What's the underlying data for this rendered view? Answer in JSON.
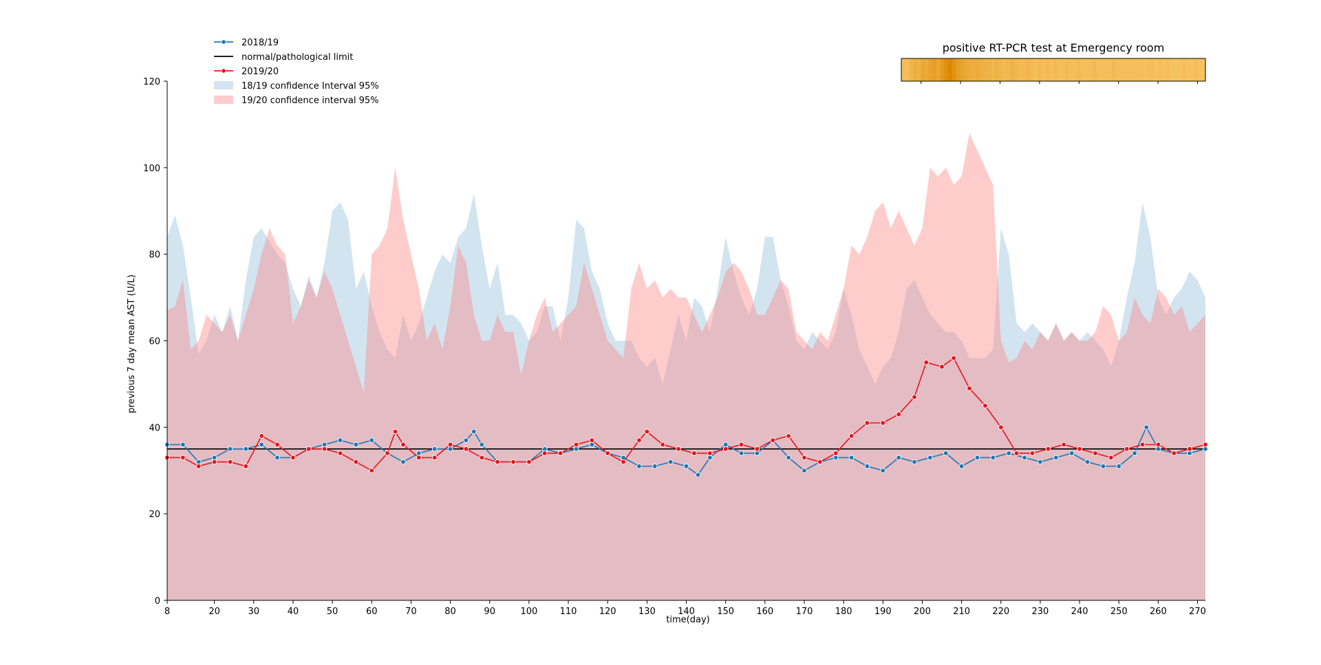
{
  "chart_data": {
    "type": "line",
    "xlabel": "time(day)",
    "ylabel": "previous 7 day mean AST (U/L)",
    "xlim": [
      8,
      272
    ],
    "ylim": [
      0,
      120
    ],
    "x_ticks": [
      8,
      20,
      30,
      40,
      50,
      60,
      70,
      80,
      90,
      100,
      110,
      120,
      130,
      140,
      150,
      160,
      170,
      180,
      190,
      200,
      210,
      220,
      230,
      240,
      250,
      260,
      270
    ],
    "y_ticks": [
      0,
      20,
      40,
      60,
      80,
      100,
      120
    ],
    "reference_line": {
      "name": "normal/pathological limit",
      "y": 35,
      "color": "#000000"
    },
    "legend": {
      "placement": "top-left",
      "entries": [
        "2018/19",
        "normal/pathological limit",
        "2019/20",
        "18/19 confidence Interval 95%",
        "19/20 confidence interval 95%"
      ]
    },
    "series": [
      {
        "name": "2018/19",
        "color": "#1f77b4",
        "x": [
          8,
          12,
          16,
          20,
          24,
          28,
          32,
          36,
          40,
          44,
          48,
          52,
          56,
          60,
          64,
          68,
          72,
          76,
          80,
          84,
          86,
          88,
          92,
          96,
          100,
          104,
          108,
          112,
          116,
          120,
          124,
          128,
          132,
          136,
          140,
          143,
          146,
          150,
          154,
          158,
          162,
          166,
          170,
          174,
          178,
          182,
          186,
          190,
          194,
          198,
          202,
          206,
          210,
          214,
          218,
          222,
          226,
          230,
          234,
          238,
          242,
          246,
          250,
          254,
          257,
          260,
          264,
          268,
          272
        ],
        "values": [
          36,
          36,
          32,
          33,
          35,
          35,
          36,
          33,
          33,
          35,
          36,
          37,
          36,
          37,
          34,
          32,
          34,
          35,
          35,
          37,
          39,
          36,
          32,
          32,
          32,
          35,
          34,
          35,
          36,
          34,
          33,
          31,
          31,
          32,
          31,
          29,
          33,
          36,
          34,
          34,
          37,
          33,
          30,
          32,
          33,
          33,
          31,
          30,
          33,
          32,
          33,
          34,
          31,
          33,
          33,
          34,
          33,
          32,
          33,
          34,
          32,
          31,
          31,
          34,
          40,
          35,
          34,
          34,
          35
        ]
      },
      {
        "name": "2019/20",
        "color": "#e8141c",
        "x": [
          8,
          12,
          16,
          20,
          24,
          28,
          32,
          36,
          40,
          44,
          48,
          52,
          56,
          60,
          64,
          66,
          68,
          72,
          76,
          80,
          84,
          88,
          92,
          96,
          100,
          104,
          108,
          112,
          116,
          120,
          124,
          128,
          130,
          134,
          138,
          142,
          146,
          150,
          154,
          158,
          162,
          166,
          170,
          174,
          178,
          182,
          186,
          190,
          194,
          198,
          201,
          205,
          208,
          212,
          216,
          220,
          224,
          228,
          232,
          236,
          240,
          244,
          248,
          252,
          256,
          260,
          264,
          268,
          272
        ],
        "values": [
          33,
          33,
          31,
          32,
          32,
          31,
          38,
          36,
          33,
          35,
          35,
          34,
          32,
          30,
          34,
          39,
          36,
          33,
          33,
          36,
          35,
          33,
          32,
          32,
          32,
          34,
          34,
          36,
          37,
          34,
          32,
          37,
          39,
          36,
          35,
          34,
          34,
          35,
          36,
          35,
          37,
          38,
          33,
          32,
          34,
          38,
          41,
          41,
          43,
          47,
          55,
          54,
          56,
          49,
          45,
          40,
          34,
          34,
          35,
          36,
          35,
          34,
          33,
          35,
          36,
          36,
          34,
          35,
          36
        ]
      }
    ],
    "confidence_bands": [
      {
        "name": "18/19 confidence Interval 95%",
        "color": "#1f77b4",
        "opacity": 0.2,
        "x": [
          8,
          10,
          12,
          14,
          16,
          18,
          20,
          22,
          24,
          26,
          28,
          30,
          32,
          34,
          36,
          38,
          40,
          42,
          44,
          46,
          48,
          50,
          52,
          54,
          56,
          58,
          60,
          62,
          64,
          66,
          68,
          70,
          72,
          74,
          76,
          78,
          80,
          82,
          84,
          86,
          88,
          90,
          92,
          94,
          96,
          98,
          100,
          102,
          104,
          106,
          108,
          110,
          112,
          114,
          116,
          118,
          120,
          122,
          124,
          126,
          128,
          130,
          132,
          134,
          136,
          138,
          140,
          142,
          144,
          146,
          148,
          150,
          152,
          154,
          156,
          158,
          160,
          162,
          164,
          166,
          168,
          170,
          172,
          174,
          176,
          178,
          180,
          182,
          184,
          186,
          188,
          190,
          192,
          194,
          196,
          198,
          200,
          202,
          204,
          206,
          208,
          210,
          212,
          214,
          216,
          218,
          220,
          222,
          224,
          226,
          228,
          230,
          232,
          234,
          236,
          238,
          240,
          242,
          244,
          246,
          248,
          250,
          252,
          254,
          256,
          258,
          260,
          262,
          264,
          266,
          268,
          270,
          272
        ],
        "upper": [
          84,
          89,
          82,
          70,
          57,
          60,
          66,
          62,
          68,
          60,
          74,
          84,
          86,
          83,
          80,
          78,
          72,
          68,
          75,
          70,
          78,
          90,
          92,
          88,
          72,
          76,
          68,
          62,
          58,
          56,
          66,
          60,
          64,
          70,
          76,
          80,
          78,
          84,
          86,
          94,
          82,
          72,
          78,
          66,
          66,
          64,
          60,
          62,
          68,
          68,
          60,
          70,
          88,
          86,
          76,
          72,
          64,
          60,
          60,
          60,
          56,
          54,
          56,
          50,
          58,
          66,
          60,
          70,
          68,
          62,
          72,
          84,
          76,
          70,
          66,
          72,
          84,
          84,
          74,
          68,
          60,
          58,
          62,
          60,
          58,
          62,
          72,
          66,
          58,
          54,
          50,
          54,
          56,
          62,
          72,
          74,
          70,
          66,
          64,
          62,
          62,
          60,
          56,
          56,
          56,
          58,
          86,
          80,
          64,
          62,
          64,
          62,
          60,
          64,
          60,
          62,
          60,
          62,
          60,
          58,
          54,
          60,
          70,
          78,
          92,
          84,
          70,
          66,
          70,
          72,
          76,
          74,
          70
        ],
        "lower": [
          0,
          0,
          0,
          0,
          0,
          0,
          0,
          0,
          0,
          0,
          0,
          0,
          0,
          0,
          0,
          0,
          0,
          0,
          0,
          0,
          0,
          0,
          0,
          0,
          0,
          0,
          0,
          0,
          0,
          0,
          0,
          0,
          0,
          0,
          0,
          0,
          0,
          0,
          0,
          0,
          0,
          0,
          0,
          0,
          0,
          0,
          0,
          0,
          0,
          0,
          0,
          0,
          0,
          0,
          0,
          0,
          0,
          0,
          0,
          0,
          0,
          0,
          0,
          0,
          0,
          0,
          0,
          0,
          0,
          0,
          0,
          0,
          0,
          0,
          0,
          0,
          0,
          0,
          0,
          0,
          0,
          0,
          0,
          0,
          0,
          0,
          0,
          0,
          0,
          0,
          0,
          0,
          0,
          0,
          0,
          0,
          0,
          0,
          0,
          0,
          0,
          0,
          0,
          0,
          0,
          0,
          0,
          0,
          0,
          0,
          0,
          0,
          0,
          0,
          0,
          0,
          0,
          0,
          0,
          0,
          0,
          0,
          0,
          0,
          0,
          0,
          0,
          0,
          0,
          0,
          0,
          0,
          0
        ]
      },
      {
        "name": "19/20 confidence interval 95%",
        "color": "#ff7f7f",
        "opacity": 0.4,
        "x": [
          8,
          10,
          12,
          14,
          16,
          18,
          20,
          22,
          24,
          26,
          28,
          30,
          32,
          34,
          36,
          38,
          40,
          42,
          44,
          46,
          48,
          50,
          52,
          54,
          56,
          58,
          60,
          62,
          64,
          66,
          68,
          70,
          72,
          74,
          76,
          78,
          80,
          82,
          84,
          86,
          88,
          90,
          92,
          94,
          96,
          98,
          100,
          102,
          104,
          106,
          108,
          110,
          112,
          114,
          116,
          118,
          120,
          122,
          124,
          126,
          128,
          130,
          132,
          134,
          136,
          138,
          140,
          142,
          144,
          146,
          148,
          150,
          152,
          154,
          156,
          158,
          160,
          162,
          164,
          166,
          168,
          170,
          172,
          174,
          176,
          178,
          180,
          182,
          184,
          186,
          188,
          190,
          192,
          194,
          196,
          198,
          200,
          202,
          204,
          206,
          208,
          210,
          212,
          214,
          216,
          218,
          220,
          222,
          224,
          226,
          228,
          230,
          232,
          234,
          236,
          238,
          240,
          242,
          244,
          246,
          248,
          250,
          252,
          254,
          256,
          258,
          260,
          262,
          264,
          266,
          268,
          270,
          272
        ],
        "upper": [
          67,
          68,
          74,
          58,
          60,
          66,
          64,
          62,
          66,
          60,
          66,
          72,
          80,
          86,
          82,
          80,
          64,
          68,
          74,
          70,
          76,
          72,
          66,
          60,
          54,
          48,
          80,
          82,
          86,
          100,
          88,
          80,
          72,
          60,
          64,
          58,
          68,
          82,
          78,
          66,
          60,
          60,
          66,
          62,
          62,
          52,
          60,
          66,
          70,
          62,
          64,
          66,
          68,
          78,
          72,
          66,
          60,
          58,
          56,
          72,
          78,
          72,
          74,
          70,
          72,
          70,
          70,
          66,
          62,
          66,
          70,
          76,
          78,
          76,
          72,
          66,
          66,
          70,
          74,
          72,
          62,
          60,
          58,
          62,
          60,
          66,
          72,
          82,
          80,
          84,
          90,
          92,
          86,
          90,
          86,
          82,
          86,
          100,
          98,
          100,
          96,
          98,
          108,
          104,
          100,
          96,
          60,
          55,
          56,
          60,
          58,
          62,
          60,
          64,
          60,
          62,
          60,
          60,
          62,
          68,
          66,
          60,
          62,
          70,
          66,
          64,
          72,
          70,
          66,
          68,
          62,
          64,
          66
        ],
        "lower": [
          0,
          0,
          0,
          0,
          0,
          0,
          0,
          0,
          0,
          0,
          0,
          0,
          0,
          0,
          0,
          0,
          0,
          0,
          0,
          0,
          0,
          0,
          0,
          0,
          0,
          0,
          0,
          0,
          0,
          0,
          0,
          0,
          0,
          0,
          0,
          0,
          0,
          0,
          0,
          0,
          0,
          0,
          0,
          0,
          0,
          0,
          0,
          0,
          0,
          0,
          0,
          0,
          0,
          0,
          0,
          0,
          0,
          0,
          0,
          0,
          0,
          0,
          0,
          0,
          0,
          0,
          0,
          0,
          0,
          0,
          0,
          0,
          0,
          0,
          0,
          0,
          0,
          0,
          0,
          0,
          0,
          0,
          0,
          0,
          0,
          0,
          0,
          0,
          0,
          0,
          0,
          0,
          0,
          0,
          0,
          0,
          0,
          0,
          0,
          0,
          0,
          0,
          0,
          0,
          0,
          0,
          0,
          0,
          0,
          0,
          0,
          0,
          0,
          0,
          0,
          0,
          0,
          0,
          0,
          0,
          0,
          0,
          0,
          0,
          0,
          0,
          0,
          0,
          0,
          0,
          0,
          0,
          0
        ]
      }
    ],
    "heat_strip": {
      "type": "heatmap",
      "title": "positive RT-PCR test at Emergency room",
      "x_range": [
        195,
        272
      ],
      "intensity_by_day": [
        0.3,
        0.3,
        0.4,
        0.5,
        0.45,
        0.6,
        0.55,
        0.65,
        0.7,
        0.6,
        0.75,
        0.9,
        1.0,
        0.85,
        0.7,
        0.65,
        0.6,
        0.55,
        0.5,
        0.55,
        0.5,
        0.45,
        0.45,
        0.4,
        0.45,
        0.4,
        0.35,
        0.4,
        0.45,
        0.4,
        0.35,
        0.35,
        0.4,
        0.35,
        0.3,
        0.35,
        0.3,
        0.35,
        0.3,
        0.35,
        0.3,
        0.3,
        0.35,
        0.3,
        0.3,
        0.35,
        0.3,
        0.3,
        0.3,
        0.35,
        0.3,
        0.3,
        0.3,
        0.3,
        0.35,
        0.3,
        0.3,
        0.3,
        0.3,
        0.3,
        0.3,
        0.3,
        0.25,
        0.3,
        0.3,
        0.25,
        0.3,
        0.25,
        0.3,
        0.25,
        0.25,
        0.25,
        0.3,
        0.25,
        0.25,
        0.3,
        0.25,
        0.25
      ]
    }
  }
}
